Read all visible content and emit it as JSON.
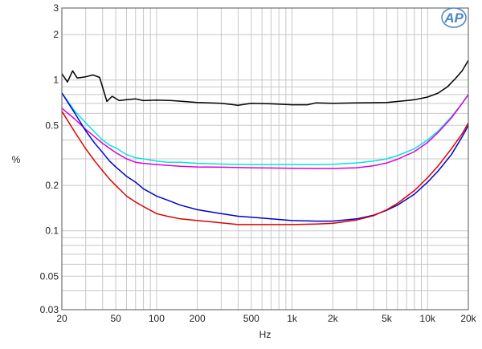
{
  "chart_data": {
    "type": "line",
    "title": "",
    "xlabel": "Hz",
    "ylabel": "%",
    "x_scale": "log",
    "y_scale": "log",
    "xlim": [
      20,
      20000
    ],
    "ylim": [
      0.03,
      3
    ],
    "grid": true,
    "logo_text": "AP",
    "x_ticks": [
      {
        "value": 20,
        "label": "20"
      },
      {
        "value": 50,
        "label": "50"
      },
      {
        "value": 100,
        "label": "100"
      },
      {
        "value": 200,
        "label": "200"
      },
      {
        "value": 500,
        "label": "500"
      },
      {
        "value": 1000,
        "label": "1k"
      },
      {
        "value": 2000,
        "label": "2k"
      },
      {
        "value": 5000,
        "label": "5k"
      },
      {
        "value": 10000,
        "label": "10k"
      },
      {
        "value": 20000,
        "label": "20k"
      }
    ],
    "y_ticks": [
      {
        "value": 3,
        "label": "3"
      },
      {
        "value": 2,
        "label": "2"
      },
      {
        "value": 1,
        "label": "1"
      },
      {
        "value": 0.5,
        "label": "0.5"
      },
      {
        "value": 0.2,
        "label": "0.2"
      },
      {
        "value": 0.1,
        "label": "0.1"
      },
      {
        "value": 0.05,
        "label": "0.05"
      },
      {
        "value": 0.03,
        "label": "0.03"
      }
    ],
    "series": [
      {
        "color": "#000000",
        "points": [
          [
            20,
            1.1
          ],
          [
            22,
            0.97
          ],
          [
            24,
            1.15
          ],
          [
            26,
            1.03
          ],
          [
            30,
            1.05
          ],
          [
            34,
            1.08
          ],
          [
            38,
            1.04
          ],
          [
            43,
            0.72
          ],
          [
            47,
            0.78
          ],
          [
            53,
            0.73
          ],
          [
            60,
            0.74
          ],
          [
            70,
            0.75
          ],
          [
            80,
            0.73
          ],
          [
            100,
            0.735
          ],
          [
            130,
            0.73
          ],
          [
            160,
            0.72
          ],
          [
            200,
            0.71
          ],
          [
            300,
            0.7
          ],
          [
            400,
            0.68
          ],
          [
            500,
            0.7
          ],
          [
            700,
            0.695
          ],
          [
            1000,
            0.685
          ],
          [
            1300,
            0.685
          ],
          [
            1500,
            0.705
          ],
          [
            2000,
            0.7
          ],
          [
            3000,
            0.705
          ],
          [
            5000,
            0.71
          ],
          [
            7000,
            0.73
          ],
          [
            8000,
            0.74
          ],
          [
            10000,
            0.77
          ],
          [
            12000,
            0.82
          ],
          [
            14000,
            0.9
          ],
          [
            16000,
            1.02
          ],
          [
            18000,
            1.15
          ],
          [
            20000,
            1.35
          ]
        ]
      },
      {
        "color": "#00e5e5",
        "points": [
          [
            20,
            0.82
          ],
          [
            25,
            0.62
          ],
          [
            30,
            0.52
          ],
          [
            35,
            0.45
          ],
          [
            40,
            0.4
          ],
          [
            45,
            0.37
          ],
          [
            50,
            0.355
          ],
          [
            60,
            0.32
          ],
          [
            70,
            0.305
          ],
          [
            80,
            0.3
          ],
          [
            100,
            0.29
          ],
          [
            120,
            0.285
          ],
          [
            150,
            0.285
          ],
          [
            200,
            0.28
          ],
          [
            300,
            0.277
          ],
          [
            500,
            0.275
          ],
          [
            700,
            0.275
          ],
          [
            1000,
            0.275
          ],
          [
            1500,
            0.275
          ],
          [
            2000,
            0.276
          ],
          [
            3000,
            0.282
          ],
          [
            4000,
            0.29
          ],
          [
            5000,
            0.3
          ],
          [
            6000,
            0.315
          ],
          [
            8000,
            0.35
          ],
          [
            10000,
            0.4
          ],
          [
            12000,
            0.46
          ],
          [
            15000,
            0.57
          ],
          [
            18000,
            0.7
          ],
          [
            20000,
            0.8
          ]
        ]
      },
      {
        "color": "#dd00dd",
        "points": [
          [
            20,
            0.65
          ],
          [
            25,
            0.55
          ],
          [
            30,
            0.47
          ],
          [
            40,
            0.38
          ],
          [
            50,
            0.33
          ],
          [
            60,
            0.3
          ],
          [
            70,
            0.285
          ],
          [
            80,
            0.28
          ],
          [
            100,
            0.275
          ],
          [
            150,
            0.268
          ],
          [
            200,
            0.265
          ],
          [
            300,
            0.264
          ],
          [
            500,
            0.262
          ],
          [
            700,
            0.261
          ],
          [
            1000,
            0.26
          ],
          [
            1500,
            0.259
          ],
          [
            2000,
            0.259
          ],
          [
            3000,
            0.262
          ],
          [
            4000,
            0.27
          ],
          [
            5000,
            0.282
          ],
          [
            6000,
            0.298
          ],
          [
            8000,
            0.335
          ],
          [
            10000,
            0.385
          ],
          [
            12000,
            0.45
          ],
          [
            15000,
            0.56
          ],
          [
            18000,
            0.7
          ],
          [
            20000,
            0.8
          ]
        ]
      },
      {
        "color": "#0000cc",
        "points": [
          [
            20,
            0.82
          ],
          [
            25,
            0.6
          ],
          [
            30,
            0.46
          ],
          [
            35,
            0.38
          ],
          [
            40,
            0.33
          ],
          [
            45,
            0.29
          ],
          [
            50,
            0.265
          ],
          [
            60,
            0.23
          ],
          [
            70,
            0.21
          ],
          [
            80,
            0.19
          ],
          [
            100,
            0.17
          ],
          [
            120,
            0.16
          ],
          [
            150,
            0.148
          ],
          [
            200,
            0.138
          ],
          [
            300,
            0.13
          ],
          [
            400,
            0.125
          ],
          [
            500,
            0.123
          ],
          [
            700,
            0.12
          ],
          [
            1000,
            0.117
          ],
          [
            1500,
            0.116
          ],
          [
            2000,
            0.116
          ],
          [
            3000,
            0.12
          ],
          [
            4000,
            0.127
          ],
          [
            5000,
            0.137
          ],
          [
            6000,
            0.148
          ],
          [
            8000,
            0.175
          ],
          [
            10000,
            0.21
          ],
          [
            12000,
            0.25
          ],
          [
            15000,
            0.32
          ],
          [
            18000,
            0.42
          ],
          [
            20000,
            0.5
          ]
        ]
      },
      {
        "color": "#dd0000",
        "points": [
          [
            20,
            0.62
          ],
          [
            25,
            0.45
          ],
          [
            30,
            0.35
          ],
          [
            35,
            0.29
          ],
          [
            40,
            0.25
          ],
          [
            45,
            0.22
          ],
          [
            50,
            0.2
          ],
          [
            60,
            0.17
          ],
          [
            70,
            0.155
          ],
          [
            80,
            0.145
          ],
          [
            100,
            0.13
          ],
          [
            120,
            0.125
          ],
          [
            150,
            0.12
          ],
          [
            200,
            0.117
          ],
          [
            300,
            0.113
          ],
          [
            400,
            0.11
          ],
          [
            500,
            0.11
          ],
          [
            700,
            0.11
          ],
          [
            1000,
            0.11
          ],
          [
            1500,
            0.111
          ],
          [
            2000,
            0.112
          ],
          [
            3000,
            0.118
          ],
          [
            4000,
            0.126
          ],
          [
            5000,
            0.138
          ],
          [
            6000,
            0.152
          ],
          [
            8000,
            0.185
          ],
          [
            10000,
            0.225
          ],
          [
            12000,
            0.27
          ],
          [
            15000,
            0.35
          ],
          [
            18000,
            0.44
          ],
          [
            20000,
            0.52
          ]
        ]
      }
    ]
  }
}
